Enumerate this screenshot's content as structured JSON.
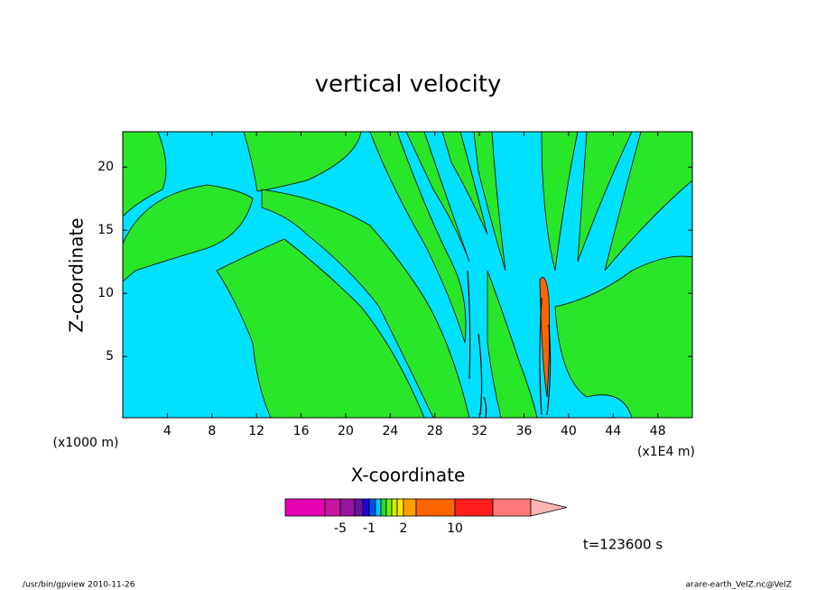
{
  "chart_data": {
    "type": "contour",
    "title": "vertical velocity",
    "xlabel": "X-coordinate",
    "ylabel": "Z-coordinate",
    "xunit": "(x1000 m)",
    "xunit_right": "(x1E4 m)",
    "time_label": "t=123600 s",
    "footer_left": "/usr/bin/gpview   2010-11-26",
    "footer_right": "arare-earth_VelZ.nc@VelZ",
    "xlim": [
      0,
      51.1
    ],
    "xticks": [
      4,
      8,
      12,
      16,
      20,
      24,
      28,
      32,
      36,
      40,
      44,
      48
    ],
    "ylim": [
      0.15,
      22.8
    ],
    "yticks": [
      5,
      10,
      15,
      20
    ],
    "colorbar": {
      "levels": [
        -10,
        -5,
        -3,
        -2,
        -1,
        -0.5,
        0,
        0.5,
        1,
        1.5,
        2,
        5,
        10,
        20,
        30
      ],
      "colors": [
        "#e600b4",
        "#c814a0",
        "#9614a0",
        "#6414a0",
        "#1e00dc",
        "#0050f0",
        "#00c8ff",
        "#28dc28",
        "#78f000",
        "#c8f000",
        "#ffe600",
        "#ffa000",
        "#ff6400",
        "#ff1e1e",
        "#ff7878",
        "#ffb4b4"
      ],
      "ticks": [
        -5,
        -1,
        2,
        10
      ]
    }
  }
}
